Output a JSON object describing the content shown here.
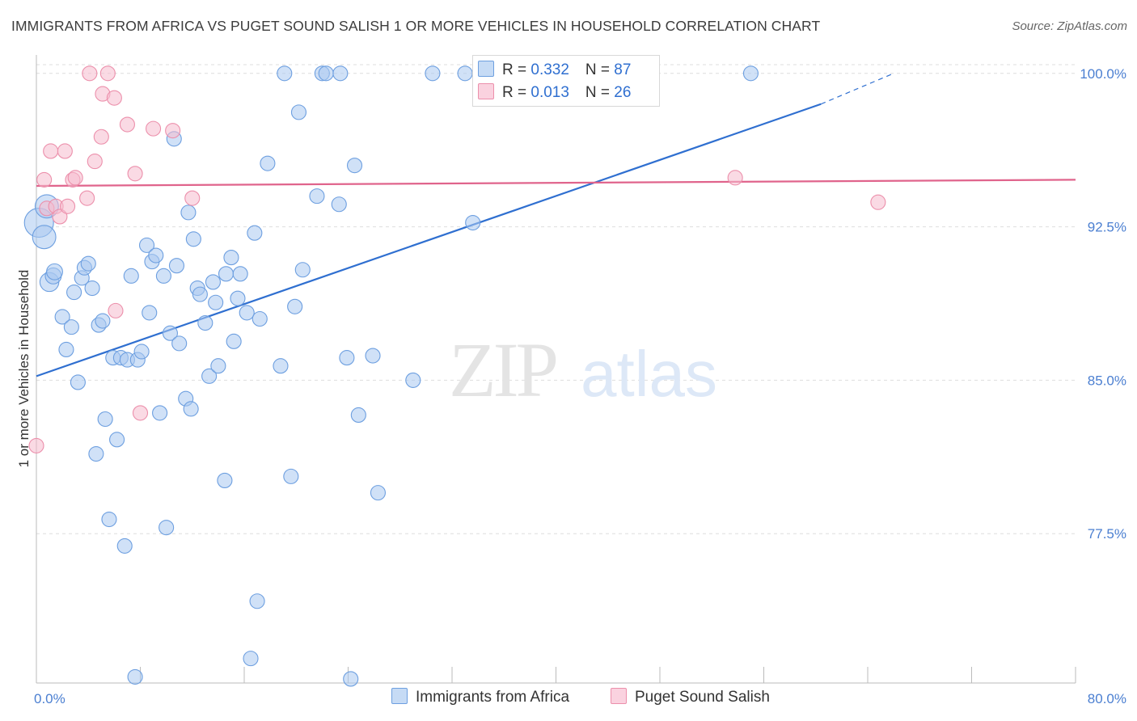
{
  "header": {
    "title": "IMMIGRANTS FROM AFRICA VS PUGET SOUND SALISH 1 OR MORE VEHICLES IN HOUSEHOLD CORRELATION CHART",
    "source": "Source: ZipAtlas.com"
  },
  "watermark": {
    "zip": "ZIP",
    "atlas": "atlas"
  },
  "legend_top": {
    "rows": [
      {
        "r_label": "R = ",
        "r_value": "0.332",
        "n_label": "N = ",
        "n_value": "87"
      },
      {
        "r_label": "R = ",
        "r_value": "0.013",
        "n_label": "N = ",
        "n_value": "26"
      }
    ]
  },
  "legend_bottom": {
    "series_a": "Immigrants from Africa",
    "series_b": "Puget Sound Salish"
  },
  "colors": {
    "blue_fill": "#a9c8f0",
    "blue_stroke": "#6d9fe0",
    "blue_line": "#2f6fd0",
    "pink_fill": "#f6bccd",
    "pink_stroke": "#ec8fab",
    "pink_line": "#e0648c",
    "grid": "#dddddd",
    "tick_text": "#4b7fd1"
  },
  "chart_data": {
    "type": "scatter",
    "title": "IMMIGRANTS FROM AFRICA VS PUGET SOUND SALISH 1 OR MORE VEHICLES IN HOUSEHOLD CORRELATION CHART",
    "xlabel": "",
    "ylabel": "1 or more Vehicles in Household",
    "xlim": [
      0,
      80
    ],
    "ylim": [
      70.2,
      100.9
    ],
    "x_tick_labels": [
      "0.0%",
      "80.0%"
    ],
    "y_ticks": [
      77.5,
      85.0,
      92.5,
      100.0
    ],
    "y_tick_labels": [
      "77.5%",
      "85.0%",
      "92.5%",
      "100.0%"
    ],
    "grid": true,
    "legend_position": "top-center",
    "series": [
      {
        "name": "Immigrants from Africa",
        "color": "#6d9fe0",
        "trend": {
          "x0": 0,
          "y0": 85.2,
          "x1": 60.4,
          "y1": 98.5,
          "dashed_to_x": 66,
          "dashed_to_y": 100.0
        },
        "points": [
          [
            0.2,
            92.7,
            2
          ],
          [
            0.6,
            92.0,
            1.6
          ],
          [
            0.8,
            93.5,
            1.6
          ],
          [
            1.0,
            89.8,
            1.3
          ],
          [
            1.3,
            90.1,
            1.1
          ],
          [
            1.4,
            90.3,
            1.1
          ],
          [
            2.0,
            88.1,
            1
          ],
          [
            2.3,
            86.5,
            1
          ],
          [
            2.7,
            87.6,
            1
          ],
          [
            2.9,
            89.3,
            1
          ],
          [
            3.2,
            84.9,
            1
          ],
          [
            3.5,
            90.0,
            1
          ],
          [
            3.7,
            90.5,
            1
          ],
          [
            4.0,
            90.7,
            1
          ],
          [
            4.3,
            89.5,
            1
          ],
          [
            4.6,
            81.4,
            1
          ],
          [
            4.8,
            87.7,
            1
          ],
          [
            5.1,
            87.9,
            1
          ],
          [
            5.3,
            83.1,
            1
          ],
          [
            5.6,
            78.2,
            1
          ],
          [
            5.9,
            86.1,
            1
          ],
          [
            6.2,
            82.1,
            1
          ],
          [
            6.5,
            86.1,
            1
          ],
          [
            6.8,
            76.9,
            1
          ],
          [
            7.0,
            86.0,
            1
          ],
          [
            7.3,
            90.1,
            1
          ],
          [
            7.6,
            70.5,
            1
          ],
          [
            7.8,
            86.0,
            1
          ],
          [
            8.1,
            86.4,
            1
          ],
          [
            8.5,
            91.6,
            1
          ],
          [
            8.7,
            88.3,
            1
          ],
          [
            8.9,
            90.8,
            1
          ],
          [
            9.2,
            91.1,
            1
          ],
          [
            9.5,
            83.4,
            1
          ],
          [
            9.8,
            90.1,
            1
          ],
          [
            10.0,
            77.8,
            1
          ],
          [
            10.3,
            87.3,
            1
          ],
          [
            10.6,
            96.8,
            1
          ],
          [
            10.8,
            90.6,
            1
          ],
          [
            11.0,
            86.8,
            1
          ],
          [
            11.5,
            84.1,
            1
          ],
          [
            11.7,
            93.2,
            1
          ],
          [
            11.9,
            83.6,
            1
          ],
          [
            12.1,
            91.9,
            1
          ],
          [
            12.4,
            89.5,
            1
          ],
          [
            12.6,
            89.2,
            1
          ],
          [
            13.0,
            87.8,
            1
          ],
          [
            13.3,
            85.2,
            1
          ],
          [
            13.6,
            89.8,
            1
          ],
          [
            13.8,
            88.8,
            1
          ],
          [
            14.0,
            85.7,
            1
          ],
          [
            14.5,
            80.1,
            1
          ],
          [
            14.6,
            90.2,
            1
          ],
          [
            15.0,
            91.0,
            1
          ],
          [
            15.2,
            86.9,
            1
          ],
          [
            15.5,
            89.0,
            1
          ],
          [
            15.7,
            90.2,
            1
          ],
          [
            16.2,
            88.3,
            1
          ],
          [
            16.5,
            71.4,
            1
          ],
          [
            16.8,
            92.2,
            1
          ],
          [
            17.0,
            74.2,
            1
          ],
          [
            17.2,
            88.0,
            1
          ],
          [
            17.8,
            95.6,
            1
          ],
          [
            18.8,
            85.7,
            1
          ],
          [
            19.1,
            100.0,
            1
          ],
          [
            19.6,
            80.3,
            1
          ],
          [
            19.9,
            88.6,
            1
          ],
          [
            20.2,
            98.1,
            1
          ],
          [
            20.5,
            90.4,
            1
          ],
          [
            21.6,
            94.0,
            1
          ],
          [
            22.0,
            100.0,
            1
          ],
          [
            22.3,
            100.0,
            1
          ],
          [
            23.3,
            93.6,
            1
          ],
          [
            23.4,
            100.0,
            1
          ],
          [
            23.9,
            86.1,
            1
          ],
          [
            24.2,
            70.4,
            1
          ],
          [
            24.5,
            95.5,
            1
          ],
          [
            24.8,
            83.3,
            1
          ],
          [
            25.9,
            86.2,
            1
          ],
          [
            26.3,
            79.5,
            1
          ],
          [
            29.0,
            85.0,
            1
          ],
          [
            30.5,
            100.0,
            1
          ],
          [
            33.0,
            100.0,
            1
          ],
          [
            33.6,
            92.7,
            1
          ],
          [
            39.0,
            100.0,
            1
          ],
          [
            55.0,
            100.0,
            1
          ]
        ]
      },
      {
        "name": "Puget Sound Salish",
        "color": "#ec8fab",
        "trend": {
          "x0": 0,
          "y0": 94.5,
          "x1": 80,
          "y1": 94.8
        },
        "points": [
          [
            0.0,
            81.8,
            1
          ],
          [
            0.6,
            94.8,
            1
          ],
          [
            0.8,
            93.4,
            1
          ],
          [
            1.1,
            96.2,
            1
          ],
          [
            1.5,
            93.5,
            1
          ],
          [
            1.8,
            93.0,
            1
          ],
          [
            2.2,
            96.2,
            1
          ],
          [
            2.4,
            93.5,
            1
          ],
          [
            2.8,
            94.8,
            1
          ],
          [
            3.0,
            94.9,
            1
          ],
          [
            3.9,
            93.9,
            1
          ],
          [
            4.1,
            100.0,
            1
          ],
          [
            4.5,
            95.7,
            1
          ],
          [
            5.0,
            96.9,
            1
          ],
          [
            5.1,
            99.0,
            1
          ],
          [
            5.5,
            100.0,
            1
          ],
          [
            6.0,
            98.8,
            1
          ],
          [
            6.1,
            88.4,
            1
          ],
          [
            7.0,
            97.5,
            1
          ],
          [
            7.6,
            95.1,
            1
          ],
          [
            8.0,
            83.4,
            1
          ],
          [
            9.0,
            97.3,
            1
          ],
          [
            10.5,
            97.2,
            1
          ],
          [
            12.0,
            93.9,
            1
          ],
          [
            53.8,
            94.9,
            1
          ],
          [
            64.8,
            93.7,
            1
          ]
        ]
      }
    ]
  }
}
